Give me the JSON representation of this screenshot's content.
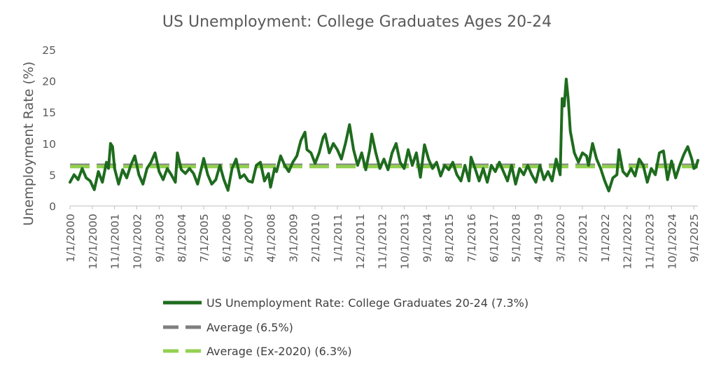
{
  "chart_data": {
    "type": "line",
    "title": "US Unemployment: College Graduates Ages 20-24",
    "ylabel": "Unemployment Rate (%)",
    "xlabel": "",
    "ylim": [
      0,
      25
    ],
    "y_ticks": [
      "0",
      "5",
      "10",
      "15",
      "20",
      "25"
    ],
    "x_tick_labels": [
      "1/1/2000",
      "12/1/2000",
      "11/1/2001",
      "10/1/2002",
      "9/1/2003",
      "8/1/2004",
      "7/1/2005",
      "6/1/2006",
      "5/1/2007",
      "4/1/2008",
      "3/1/2009",
      "2/1/2010",
      "1/1/2011",
      "12/1/2011",
      "11/1/2012",
      "10/1/2013",
      "9/1/2014",
      "8/1/2015",
      "7/1/2016",
      "6/1/2017",
      "5/1/2018",
      "4/1/2019",
      "3/1/2020",
      "2/1/2021",
      "1/1/2022",
      "12/1/2022",
      "11/1/2023",
      "10/1/2024",
      "9/1/2025"
    ],
    "grid": false,
    "legend_position": "bottom",
    "series": [
      {
        "name": "US Unemployment Rate: College Graduates 20-24 (7.3%)",
        "color": "#1e6b1e",
        "style": "solid",
        "x_range": [
          "1/1/2000",
          "11/1/2025"
        ],
        "points": [
          [
            "1/1/2000",
            3.8
          ],
          [
            "3/1/2000",
            5.0
          ],
          [
            "5/1/2000",
            4.2
          ],
          [
            "7/1/2000",
            6.0
          ],
          [
            "9/1/2000",
            4.5
          ],
          [
            "11/1/2000",
            4.0
          ],
          [
            "1/1/2001",
            2.6
          ],
          [
            "3/1/2001",
            5.5
          ],
          [
            "5/1/2001",
            3.8
          ],
          [
            "7/1/2001",
            7.0
          ],
          [
            "8/1/2001",
            6.0
          ],
          [
            "9/1/2001",
            10.0
          ],
          [
            "10/1/2001",
            9.5
          ],
          [
            "11/1/2001",
            6.0
          ],
          [
            "1/1/2002",
            3.5
          ],
          [
            "3/1/2002",
            5.8
          ],
          [
            "5/1/2002",
            4.5
          ],
          [
            "7/1/2002",
            6.5
          ],
          [
            "9/1/2002",
            8.0
          ],
          [
            "11/1/2002",
            5.0
          ],
          [
            "1/1/2003",
            3.5
          ],
          [
            "3/1/2003",
            6.0
          ],
          [
            "5/1/2003",
            7.0
          ],
          [
            "7/1/2003",
            8.5
          ],
          [
            "9/1/2003",
            5.5
          ],
          [
            "11/1/2003",
            4.2
          ],
          [
            "1/1/2004",
            6.0
          ],
          [
            "3/1/2004",
            5.0
          ],
          [
            "5/1/2004",
            3.8
          ],
          [
            "6/1/2004",
            8.5
          ],
          [
            "8/1/2004",
            5.8
          ],
          [
            "10/1/2004",
            5.2
          ],
          [
            "12/1/2004",
            6.0
          ],
          [
            "2/1/2005",
            5.2
          ],
          [
            "4/1/2005",
            3.5
          ],
          [
            "6/1/2005",
            6.2
          ],
          [
            "7/1/2005",
            7.6
          ],
          [
            "9/1/2005",
            5.0
          ],
          [
            "11/1/2005",
            3.5
          ],
          [
            "1/1/2006",
            4.2
          ],
          [
            "3/1/2006",
            6.5
          ],
          [
            "5/1/2006",
            4.2
          ],
          [
            "7/1/2006",
            2.5
          ],
          [
            "9/1/2006",
            6.0
          ],
          [
            "11/1/2006",
            7.5
          ],
          [
            "1/1/2007",
            4.5
          ],
          [
            "3/1/2007",
            5.0
          ],
          [
            "5/1/2007",
            4.0
          ],
          [
            "7/1/2007",
            3.8
          ],
          [
            "9/1/2007",
            6.5
          ],
          [
            "11/1/2007",
            7.0
          ],
          [
            "1/1/2008",
            4.0
          ],
          [
            "3/1/2008",
            5.2
          ],
          [
            "4/1/2008",
            3.0
          ],
          [
            "6/1/2008",
            6.0
          ],
          [
            "7/1/2008",
            5.5
          ],
          [
            "9/1/2008",
            8.0
          ],
          [
            "11/1/2008",
            6.5
          ],
          [
            "1/1/2009",
            5.5
          ],
          [
            "3/1/2009",
            7.0
          ],
          [
            "5/1/2009",
            8.0
          ],
          [
            "7/1/2009",
            10.5
          ],
          [
            "9/1/2009",
            11.8
          ],
          [
            "10/1/2009",
            9.0
          ],
          [
            "12/1/2009",
            8.5
          ],
          [
            "2/1/2010",
            6.8
          ],
          [
            "4/1/2010",
            8.5
          ],
          [
            "6/1/2010",
            11.0
          ],
          [
            "7/1/2010",
            11.5
          ],
          [
            "9/1/2010",
            8.5
          ],
          [
            "11/1/2010",
            10.0
          ],
          [
            "1/1/2011",
            9.0
          ],
          [
            "3/1/2011",
            7.5
          ],
          [
            "5/1/2011",
            10.0
          ],
          [
            "7/1/2011",
            13.0
          ],
          [
            "9/1/2011",
            9.0
          ],
          [
            "11/1/2011",
            6.5
          ],
          [
            "1/1/2012",
            8.5
          ],
          [
            "3/1/2012",
            5.8
          ],
          [
            "5/1/2012",
            9.0
          ],
          [
            "6/1/2012",
            11.5
          ],
          [
            "8/1/2012",
            8.5
          ],
          [
            "10/1/2012",
            6.0
          ],
          [
            "12/1/2012",
            7.5
          ],
          [
            "2/1/2013",
            5.8
          ],
          [
            "4/1/2013",
            8.5
          ],
          [
            "6/1/2013",
            10.0
          ],
          [
            "8/1/2013",
            7.0
          ],
          [
            "10/1/2013",
            6.0
          ],
          [
            "12/1/2013",
            9.0
          ],
          [
            "2/1/2014",
            6.5
          ],
          [
            "4/1/2014",
            8.5
          ],
          [
            "6/1/2014",
            4.6
          ],
          [
            "8/1/2014",
            9.8
          ],
          [
            "10/1/2014",
            7.5
          ],
          [
            "12/1/2014",
            6.0
          ],
          [
            "2/1/2015",
            7.0
          ],
          [
            "4/1/2015",
            4.8
          ],
          [
            "6/1/2015",
            6.5
          ],
          [
            "8/1/2015",
            5.8
          ],
          [
            "10/1/2015",
            7.0
          ],
          [
            "12/1/2015",
            5.0
          ],
          [
            "2/1/2016",
            4.0
          ],
          [
            "4/1/2016",
            6.5
          ],
          [
            "6/1/2016",
            4.0
          ],
          [
            "7/1/2016",
            7.8
          ],
          [
            "9/1/2016",
            6.0
          ],
          [
            "11/1/2016",
            4.0
          ],
          [
            "1/1/2017",
            6.0
          ],
          [
            "3/1/2017",
            3.8
          ],
          [
            "5/1/2017",
            6.5
          ],
          [
            "7/1/2017",
            5.5
          ],
          [
            "9/1/2017",
            7.0
          ],
          [
            "11/1/2017",
            5.5
          ],
          [
            "1/1/2018",
            4.0
          ],
          [
            "3/1/2018",
            6.5
          ],
          [
            "5/1/2018",
            3.5
          ],
          [
            "7/1/2018",
            6.0
          ],
          [
            "9/1/2018",
            5.0
          ],
          [
            "11/1/2018",
            6.5
          ],
          [
            "1/1/2019",
            5.0
          ],
          [
            "3/1/2019",
            3.8
          ],
          [
            "5/1/2019",
            6.5
          ],
          [
            "7/1/2019",
            4.2
          ],
          [
            "9/1/2019",
            5.5
          ],
          [
            "11/1/2019",
            4.0
          ],
          [
            "1/1/2020",
            7.5
          ],
          [
            "3/1/2020",
            5.0
          ],
          [
            "4/1/2020",
            17.2
          ],
          [
            "5/1/2020",
            16.0
          ],
          [
            "6/1/2020",
            20.3
          ],
          [
            "7/1/2020",
            17.0
          ],
          [
            "8/1/2020",
            12.0
          ],
          [
            "10/1/2020",
            8.5
          ],
          [
            "12/1/2020",
            7.0
          ],
          [
            "2/1/2021",
            8.5
          ],
          [
            "4/1/2021",
            8.0
          ],
          [
            "5/1/2021",
            6.5
          ],
          [
            "7/1/2021",
            10.0
          ],
          [
            "9/1/2021",
            7.5
          ],
          [
            "11/1/2021",
            6.0
          ],
          [
            "1/1/2022",
            4.0
          ],
          [
            "3/1/2022",
            2.4
          ],
          [
            "5/1/2022",
            4.5
          ],
          [
            "7/1/2022",
            5.0
          ],
          [
            "8/1/2022",
            9.0
          ],
          [
            "10/1/2022",
            5.5
          ],
          [
            "12/1/2022",
            4.8
          ],
          [
            "2/1/2023",
            6.0
          ],
          [
            "4/1/2023",
            4.8
          ],
          [
            "6/1/2023",
            7.5
          ],
          [
            "8/1/2023",
            6.5
          ],
          [
            "10/1/2023",
            3.8
          ],
          [
            "12/1/2023",
            6.0
          ],
          [
            "2/1/2024",
            5.0
          ],
          [
            "4/1/2024",
            8.5
          ],
          [
            "6/1/2024",
            8.8
          ],
          [
            "8/1/2024",
            4.2
          ],
          [
            "10/1/2024",
            7.2
          ],
          [
            "12/1/2024",
            4.5
          ],
          [
            "2/1/2025",
            6.5
          ],
          [
            "4/1/2025",
            8.2
          ],
          [
            "6/1/2025",
            9.5
          ],
          [
            "8/1/2025",
            7.5
          ],
          [
            "9/1/2025",
            6.0
          ],
          [
            "10/1/2025",
            6.2
          ],
          [
            "11/1/2025",
            7.3
          ]
        ]
      },
      {
        "name": "Average (6.5%)",
        "color": "#7f7f7f",
        "style": "dashed",
        "value": 6.5,
        "x_range": [
          "1/1/2000",
          "11/1/2025"
        ]
      },
      {
        "name": "Average (Ex-2020) (6.3%)",
        "color": "#92d050",
        "style": "dashed",
        "value": 6.3,
        "x_range": [
          "1/1/2000",
          "11/1/2025"
        ]
      }
    ]
  }
}
